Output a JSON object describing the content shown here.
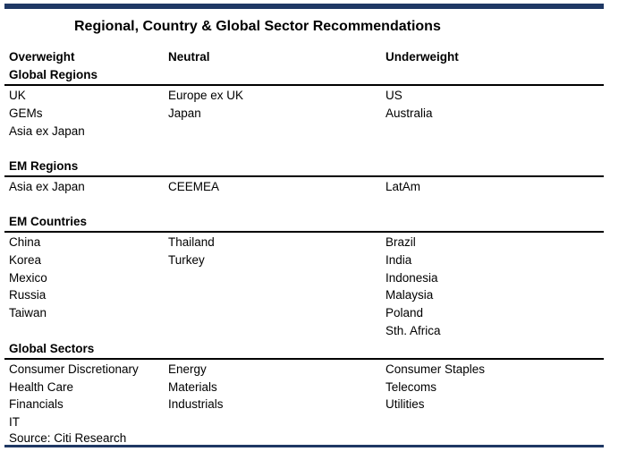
{
  "title": "Regional, Country & Global Sector Recommendations",
  "columns": [
    "Overweight",
    "Neutral",
    "Underweight"
  ],
  "sections": [
    {
      "name": "Global Regions",
      "overweight": [
        "UK",
        "GEMs",
        "Asia ex Japan"
      ],
      "neutral": [
        "Europe ex UK",
        "Japan"
      ],
      "underweight": [
        "US",
        "Australia"
      ]
    },
    {
      "name": "EM Regions",
      "overweight": [
        "Asia ex Japan"
      ],
      "neutral": [
        "CEEMEA"
      ],
      "underweight": [
        "LatAm"
      ]
    },
    {
      "name": "EM Countries",
      "overweight": [
        "China",
        "Korea",
        "Mexico",
        "Russia",
        "Taiwan"
      ],
      "neutral": [
        "Thailand",
        "Turkey"
      ],
      "underweight": [
        "Brazil",
        "India",
        "Indonesia",
        "Malaysia",
        "Poland",
        "Sth. Africa"
      ]
    },
    {
      "name": "Global Sectors",
      "overweight": [
        "Consumer Discretionary",
        "Health Care",
        "Financials",
        "IT"
      ],
      "neutral": [
        "Energy",
        "Materials",
        "Industrials"
      ],
      "underweight": [
        "Consumer Staples",
        "Telecoms",
        "Utilities"
      ]
    }
  ],
  "source": "Source: Citi Research"
}
